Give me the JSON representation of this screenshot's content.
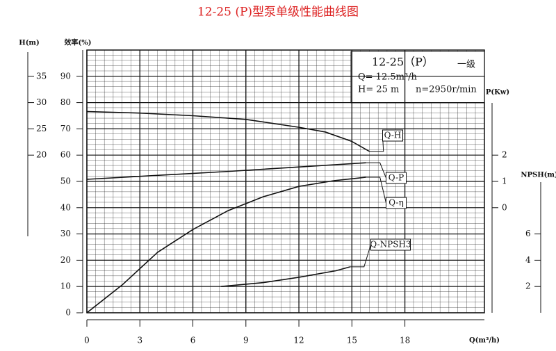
{
  "chart_data": {
    "type": "line",
    "title": "12-25 (P)型泵单级性能曲线图",
    "info": [
      "12-25（P）",
      "一级",
      "Q= 12.5m³/h",
      "H= 25 m",
      "n=2950r/min"
    ],
    "x_label": "Q(m³/h)",
    "xlim": [
      0,
      22.5
    ],
    "xticks": [
      0,
      3,
      6,
      9,
      12,
      15,
      18
    ],
    "grid": true,
    "y_axes": [
      {
        "label": "效率(%)",
        "lim": [
          0,
          100
        ],
        "ticks": [
          0,
          10,
          20,
          30,
          40,
          50,
          60,
          70,
          80,
          90
        ]
      },
      {
        "label": "H(m)",
        "lim": [
          -10,
          40
        ],
        "ticks": [
          20,
          25,
          30,
          35
        ]
      },
      {
        "label": "P(Kw)",
        "lim": [
          -4,
          6
        ],
        "ticks": [
          0,
          1,
          2
        ]
      },
      {
        "label": "NPSH(m)",
        "lim": [
          0,
          20
        ],
        "ticks": [
          2,
          4,
          6
        ]
      }
    ],
    "series": [
      {
        "name": "Q-H",
        "axis": 1,
        "color": "#111",
        "x": [
          0,
          3,
          6,
          9,
          12,
          13.5,
          15,
          16
        ],
        "values": [
          28.3,
          28.0,
          27.5,
          26.8,
          25.3,
          24.4,
          22.6,
          20.7
        ]
      },
      {
        "name": "Q-P",
        "axis": 2,
        "color": "#111",
        "x": [
          0,
          8,
          15.8
        ],
        "values": [
          1.08,
          1.38,
          1.71
        ]
      },
      {
        "name": "Q-η",
        "axis": 0,
        "color": "#111",
        "x": [
          0,
          2,
          4,
          6,
          8,
          10,
          12,
          14,
          15,
          15.8
        ],
        "values": [
          0,
          10.6,
          23,
          31.7,
          38.9,
          44.2,
          48.1,
          50.3,
          51,
          51.6
        ]
      },
      {
        "name": "Q-NPSH3",
        "axis": 3,
        "color": "#111",
        "x": [
          7.6,
          10,
          12,
          14.1,
          14.9
        ],
        "values": [
          2.0,
          2.3,
          2.7,
          3.2,
          3.5
        ]
      }
    ]
  }
}
